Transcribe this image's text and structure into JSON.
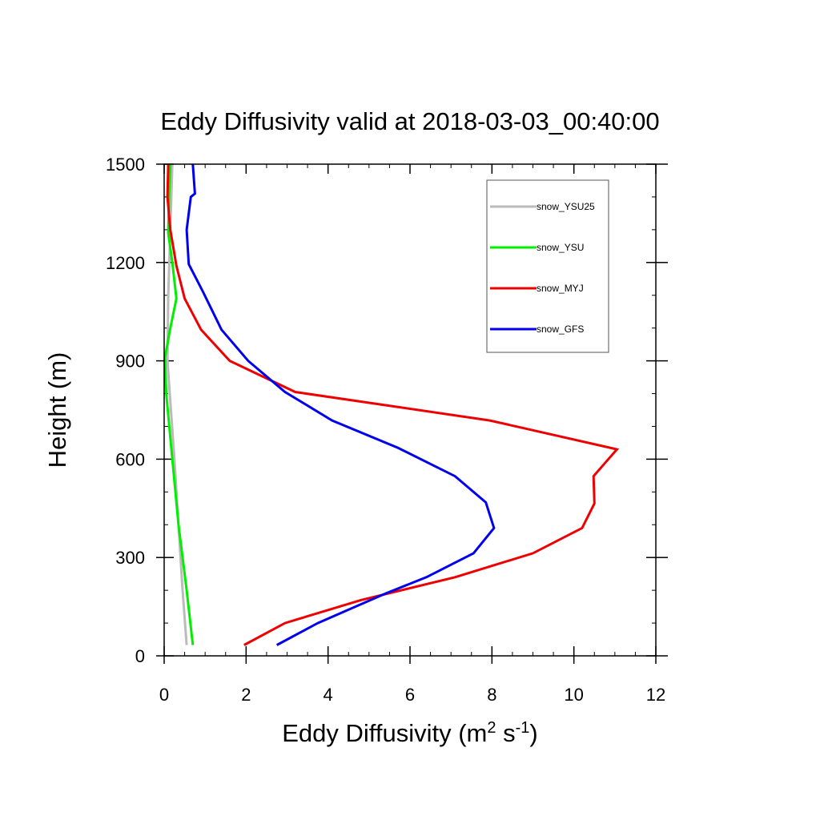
{
  "chart_data": {
    "type": "line",
    "title": "Eddy Diffusivity valid at 2018-03-03_00:40:00",
    "xlabel": {
      "main": "Eddy Diffusivity (m",
      "sup1": "2",
      "mid": " s",
      "sup2": "-1",
      "end": ")"
    },
    "ylabel": "Height (m)",
    "xlim": [
      0,
      12
    ],
    "ylim": [
      0,
      1500
    ],
    "xticks": [
      0,
      2,
      4,
      6,
      8,
      10,
      12
    ],
    "yticks": [
      0,
      300,
      600,
      900,
      1200,
      1500
    ],
    "xtick_labels": [
      "0",
      "2",
      "4",
      "6",
      "8",
      "10",
      "12"
    ],
    "ytick_labels": [
      "0",
      "300",
      "600",
      "900",
      "1200",
      "1500"
    ],
    "grid": false,
    "legend_position": "top-right",
    "series": [
      {
        "name": "snow_YSU25",
        "color": "#bbbbbb",
        "points": [
          [
            0.55,
            33
          ],
          [
            0.45,
            200
          ],
          [
            0.35,
            400
          ],
          [
            0.25,
            600
          ],
          [
            0.08,
            900
          ],
          [
            0.1,
            1100
          ],
          [
            0.15,
            1300
          ],
          [
            0.2,
            1500
          ]
        ]
      },
      {
        "name": "snow_YSU",
        "color": "#00ee00",
        "points": [
          [
            0.7,
            33
          ],
          [
            0.55,
            200
          ],
          [
            0.35,
            400
          ],
          [
            0.2,
            600
          ],
          [
            0.05,
            800
          ],
          [
            0.02,
            910
          ],
          [
            0.15,
            1000
          ],
          [
            0.3,
            1090
          ],
          [
            0.2,
            1200
          ],
          [
            0.1,
            1290
          ],
          [
            0.12,
            1400
          ],
          [
            0.15,
            1500
          ]
        ]
      },
      {
        "name": "snow_MYJ",
        "color": "#ee0000",
        "points": [
          [
            1.95,
            33
          ],
          [
            2.95,
            100
          ],
          [
            4.8,
            170
          ],
          [
            7.1,
            240
          ],
          [
            9.0,
            313
          ],
          [
            10.2,
            390
          ],
          [
            10.5,
            465
          ],
          [
            10.48,
            548
          ],
          [
            11.05,
            630
          ],
          [
            7.95,
            718
          ],
          [
            3.2,
            805
          ],
          [
            1.6,
            900
          ],
          [
            0.9,
            995
          ],
          [
            0.5,
            1090
          ],
          [
            0.3,
            1190
          ],
          [
            0.15,
            1300
          ],
          [
            0.08,
            1400
          ],
          [
            0.1,
            1500
          ]
        ]
      },
      {
        "name": "snow_GFS",
        "color": "#0000ee",
        "points": [
          [
            2.75,
            33
          ],
          [
            3.75,
            100
          ],
          [
            5.4,
            190
          ],
          [
            6.4,
            240
          ],
          [
            7.55,
            313
          ],
          [
            8.05,
            390
          ],
          [
            7.85,
            468
          ],
          [
            7.1,
            548
          ],
          [
            5.7,
            635
          ],
          [
            4.1,
            718
          ],
          [
            2.95,
            805
          ],
          [
            2.05,
            900
          ],
          [
            1.4,
            995
          ],
          [
            0.95,
            1110
          ],
          [
            0.6,
            1195
          ],
          [
            0.55,
            1300
          ],
          [
            0.65,
            1400
          ],
          [
            0.75,
            1410
          ],
          [
            0.7,
            1500
          ]
        ]
      }
    ]
  }
}
